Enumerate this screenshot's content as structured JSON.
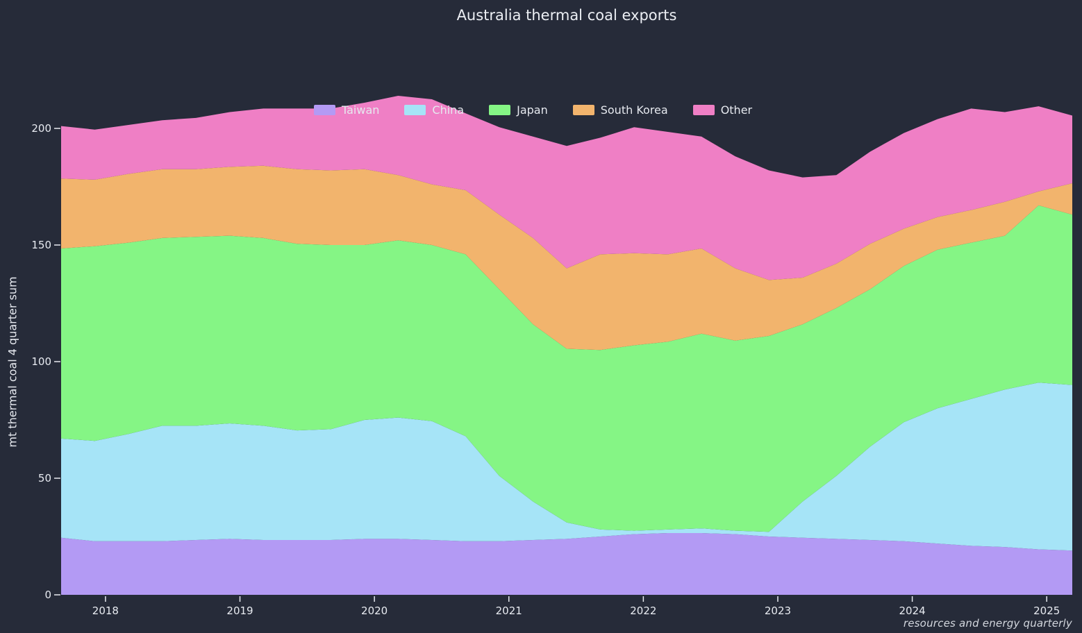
{
  "title": "Australia thermal coal exports",
  "watermark": "resources and energy quarterly",
  "colors": {
    "background": "#262b39",
    "text": "#eceff4",
    "tick": "#e8ebf1"
  },
  "y_axis": {
    "label": "mt thermal coal 4 quarter sum",
    "ticks": [
      0,
      50,
      100,
      150,
      200
    ]
  },
  "x_axis": {
    "ticks": [
      2018,
      2019,
      2020,
      2021,
      2022,
      2023,
      2024,
      2025
    ]
  },
  "chart_data": {
    "type": "area",
    "stacked": true,
    "title": "Australia thermal coal exports",
    "xlabel": "",
    "ylabel": "mt thermal coal 4 quarter sum",
    "x_domain": [
      2017.67,
      2025.19
    ],
    "ylim": [
      0,
      200
    ],
    "grid": false,
    "legend_position": "top-center-inside",
    "x_ticks": [
      2018,
      2019,
      2020,
      2021,
      2022,
      2023,
      2024,
      2025
    ],
    "y_ticks": [
      0,
      50,
      100,
      150,
      200
    ],
    "x_labels": [
      "2017-Q4",
      "2018-Q1",
      "2018-Q2",
      "2018-Q3",
      "2018-Q4",
      "2019-Q1",
      "2019-Q2",
      "2019-Q3",
      "2019-Q4",
      "2020-Q1",
      "2020-Q2",
      "2020-Q3",
      "2020-Q4",
      "2021-Q1",
      "2021-Q2",
      "2021-Q3",
      "2021-Q4",
      "2022-Q1",
      "2022-Q2",
      "2022-Q3",
      "2022-Q4",
      "2023-Q1",
      "2023-Q2",
      "2023-Q3",
      "2023-Q4",
      "2024-Q1",
      "2024-Q2",
      "2024-Q3",
      "2024-Q4",
      "2025-Q1",
      "2025-Q2"
    ],
    "series": [
      {
        "name": "Taiwan",
        "color": "#b39af4",
        "values": [
          24.5,
          23,
          23,
          23,
          23.5,
          24,
          23.5,
          23.5,
          23.5,
          24,
          24,
          23.5,
          23,
          23,
          23.5,
          24,
          25,
          26,
          26.5,
          26.5,
          26,
          25,
          24.5,
          24,
          23.5,
          23,
          22,
          21,
          20.5,
          19.5,
          19
        ]
      },
      {
        "name": "China",
        "color": "#a6e4f7",
        "values": [
          42.5,
          43,
          46,
          49.5,
          49,
          49.5,
          49,
          47,
          47.5,
          51,
          52,
          51,
          45,
          28,
          16.5,
          7,
          3,
          1.5,
          1.5,
          2,
          1.5,
          2,
          15.5,
          27,
          40,
          51,
          58,
          63,
          67.5,
          71.5,
          71
        ]
      },
      {
        "name": "Japan",
        "color": "#85f585",
        "values": [
          81.5,
          83.5,
          82,
          80.5,
          81,
          80.5,
          80.5,
          80,
          79,
          75,
          76,
          75.5,
          78,
          80,
          76,
          74.5,
          77,
          79.5,
          80.5,
          83.5,
          81.5,
          84,
          76,
          72,
          67.5,
          67,
          68,
          67,
          66,
          76,
          73
        ]
      },
      {
        "name": "South Korea",
        "color": "#f2b46d",
        "values": [
          30,
          28.5,
          29.5,
          29.5,
          29,
          29.5,
          31,
          32,
          32,
          32.5,
          28,
          26,
          27.5,
          32,
          37,
          34.5,
          41,
          39.5,
          37.5,
          36.5,
          31,
          24,
          20,
          19,
          19.5,
          16,
          14,
          14,
          14.5,
          6,
          13.5
        ]
      },
      {
        "name": "Other",
        "color": "#ef7fc5",
        "values": [
          22.5,
          21.5,
          21,
          21,
          22,
          23.5,
          24.5,
          26,
          26.5,
          28.5,
          34,
          36.5,
          33,
          37.5,
          43.5,
          52.5,
          50,
          54,
          52.5,
          48,
          48,
          47,
          43,
          38,
          39.5,
          41,
          42,
          43.5,
          38.5,
          36.5,
          29
        ]
      }
    ],
    "totals_hint": "stack sums range ~179 (2023 trough) to ~214 (2020 peak)"
  }
}
